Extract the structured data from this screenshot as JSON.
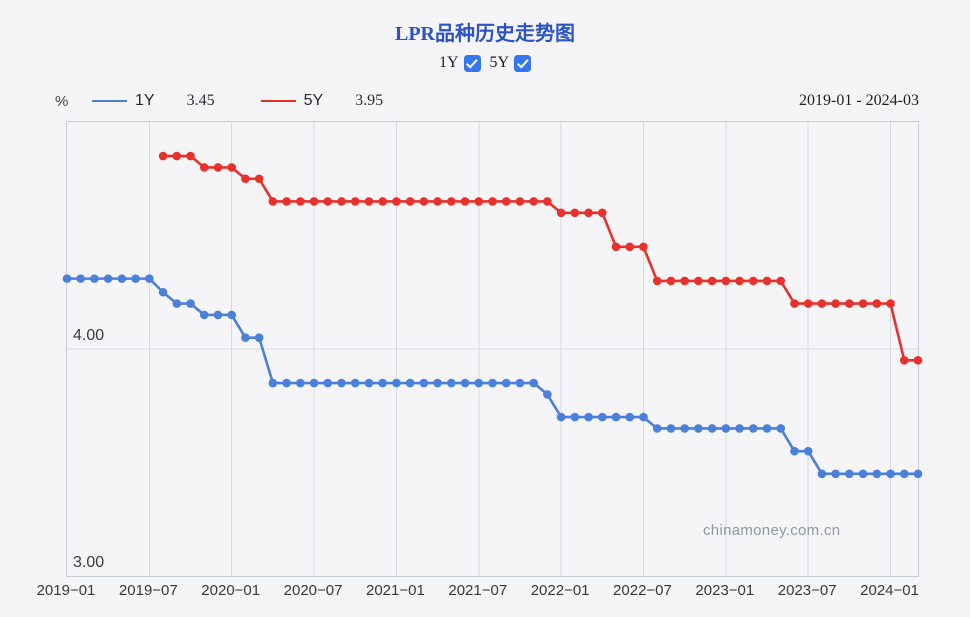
{
  "page": {
    "title": "LPR品种历史走势图",
    "unit": "%",
    "date_range": "2019-01 - 2024-03",
    "watermark": "chinamoney.com.cn"
  },
  "toggles": [
    {
      "label": "1Y",
      "checked": true
    },
    {
      "label": "5Y",
      "checked": true
    }
  ],
  "legend": [
    {
      "name": "1Y",
      "value": "3.45"
    },
    {
      "name": "5Y",
      "value": "3.95"
    }
  ],
  "chart_data": {
    "type": "line",
    "title": "LPR品种历史走势图",
    "ylabel": "%",
    "ylim": [
      3.0,
      5.0
    ],
    "x_range": [
      "2019-01",
      "2024-03"
    ],
    "x_ticks": [
      "2019−01",
      "2019−07",
      "2020−01",
      "2020−07",
      "2021−01",
      "2021−07",
      "2022−01",
      "2022−07",
      "2023−01",
      "2023−07",
      "2024−01"
    ],
    "y_ticks": [
      {
        "value": 4.0,
        "label": "4.00"
      },
      {
        "value": 3.0,
        "label": "3.00"
      }
    ],
    "y_gridlines": [
      4.0
    ],
    "grid": true,
    "legend_position": "top-left",
    "series": [
      {
        "name": "1Y",
        "color": "#4a80d8",
        "latest_value": 3.45,
        "start_month": "2019-01",
        "values": [
          4.31,
          4.31,
          4.31,
          4.31,
          4.31,
          4.31,
          4.31,
          4.25,
          4.2,
          4.2,
          4.15,
          4.15,
          4.15,
          4.05,
          4.05,
          3.85,
          3.85,
          3.85,
          3.85,
          3.85,
          3.85,
          3.85,
          3.85,
          3.85,
          3.85,
          3.85,
          3.85,
          3.85,
          3.85,
          3.85,
          3.85,
          3.85,
          3.85,
          3.85,
          3.85,
          3.8,
          3.7,
          3.7,
          3.7,
          3.7,
          3.7,
          3.7,
          3.7,
          3.65,
          3.65,
          3.65,
          3.65,
          3.65,
          3.65,
          3.65,
          3.65,
          3.65,
          3.65,
          3.55,
          3.55,
          3.45,
          3.45,
          3.45,
          3.45,
          3.45,
          3.45,
          3.45,
          3.45
        ]
      },
      {
        "name": "5Y",
        "color": "#e8312a",
        "latest_value": 3.95,
        "start_month": "2019-08",
        "values": [
          4.85,
          4.85,
          4.85,
          4.8,
          4.8,
          4.8,
          4.75,
          4.75,
          4.65,
          4.65,
          4.65,
          4.65,
          4.65,
          4.65,
          4.65,
          4.65,
          4.65,
          4.65,
          4.65,
          4.65,
          4.65,
          4.65,
          4.65,
          4.65,
          4.65,
          4.65,
          4.65,
          4.65,
          4.65,
          4.6,
          4.6,
          4.6,
          4.6,
          4.45,
          4.45,
          4.45,
          4.3,
          4.3,
          4.3,
          4.3,
          4.3,
          4.3,
          4.3,
          4.3,
          4.3,
          4.3,
          4.2,
          4.2,
          4.2,
          4.2,
          4.2,
          4.2,
          4.2,
          4.2,
          3.95,
          3.95
        ]
      }
    ]
  }
}
